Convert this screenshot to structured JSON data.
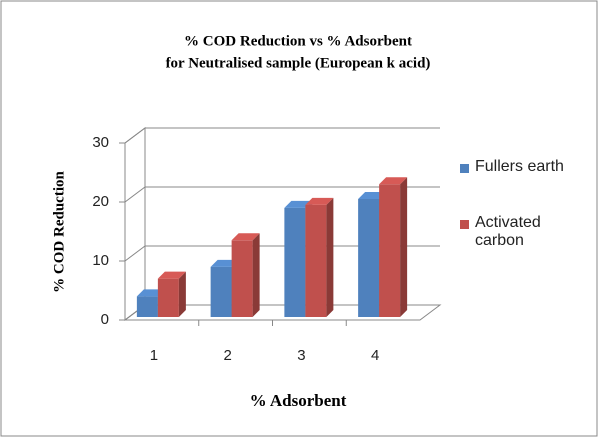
{
  "chart_data": {
    "type": "bar3d",
    "title": "% COD Reduction vs % Adsorbent",
    "subtitle": "for Neutralised sample (European k acid)",
    "x_label": "% Adsorbent",
    "y_label": "% COD Reduction",
    "categories": [
      "1",
      "2",
      "3",
      "4"
    ],
    "series": [
      {
        "name": "Fullers earth",
        "color": "#4f81bd",
        "values": [
          3.5,
          8.5,
          18.5,
          20
        ]
      },
      {
        "name": "Activated carbon",
        "color": "#c0504d",
        "values": [
          6.5,
          13,
          19,
          22.5
        ]
      }
    ],
    "ylim": [
      0,
      30
    ],
    "yticks": [
      0,
      10,
      20,
      30
    ],
    "grid": true,
    "legend": "right"
  }
}
